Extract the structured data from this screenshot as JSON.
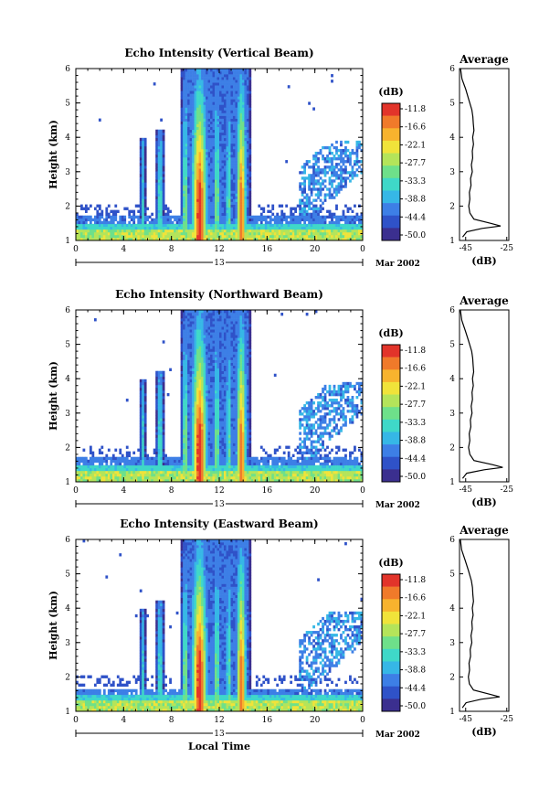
{
  "chart_data": [
    {
      "type": "heatmap",
      "title": "Echo Intensity (Vertical Beam)",
      "ylabel": "Height (km)",
      "xlabel": "",
      "x_ticks": [
        "0",
        "4",
        "8",
        "12",
        "16",
        "20",
        "0"
      ],
      "y_ticks": [
        "1",
        "2",
        "3",
        "4",
        "5",
        "6"
      ],
      "xlim": [
        0,
        24
      ],
      "ylim": [
        1,
        6
      ],
      "date_label": "13",
      "month_label": "Mar 2002",
      "colorbar": {
        "label": "(dB)",
        "ticks": [
          "-11.8",
          "-16.6",
          "-22.1",
          "-27.7",
          "-33.3",
          "-38.8",
          "-44.4",
          "-50.0"
        ]
      },
      "profile": {
        "title": "Average",
        "xlabel": "(dB)",
        "x_ticks": [
          "-45",
          "-25"
        ],
        "xlim": [
          -48,
          -24
        ],
        "y_ticks": [
          "1",
          "2",
          "3",
          "4",
          "5",
          "6"
        ],
        "x": [
          -46.5,
          -44.5,
          -37,
          -28,
          -33,
          -41,
          -43,
          -43.5,
          -43,
          -43.2,
          -42.4,
          -42.6,
          -41.8,
          -42.2,
          -41.6,
          -41.8,
          -41.2,
          -41.6,
          -41,
          -41.3,
          -41.5,
          -42,
          -43.5,
          -45,
          -46.8,
          -47.5
        ],
        "y": [
          1.1,
          1.25,
          1.35,
          1.42,
          1.5,
          1.62,
          1.8,
          2.0,
          2.2,
          2.4,
          2.6,
          2.8,
          3.0,
          3.2,
          3.4,
          3.6,
          3.8,
          4.0,
          4.2,
          4.4,
          4.6,
          4.8,
          5.1,
          5.4,
          5.7,
          6.0
        ]
      }
    },
    {
      "type": "heatmap",
      "title": "Echo Intensity (Northward Beam)",
      "ylabel": "Height (km)",
      "xlabel": "",
      "x_ticks": [
        "0",
        "4",
        "8",
        "12",
        "16",
        "20",
        "0"
      ],
      "y_ticks": [
        "1",
        "2",
        "3",
        "4",
        "5",
        "6"
      ],
      "xlim": [
        0,
        24
      ],
      "ylim": [
        1,
        6
      ],
      "date_label": "13",
      "month_label": "Mar 2002",
      "colorbar": {
        "label": "(dB)",
        "ticks": [
          "-11.8",
          "-16.6",
          "-22.1",
          "-27.7",
          "-33.3",
          "-38.8",
          "-44.4",
          "-50.0"
        ]
      },
      "profile": {
        "title": "Average",
        "xlabel": "(dB)",
        "x_ticks": [
          "-45",
          "-25"
        ],
        "xlim": [
          -48,
          -24
        ],
        "y_ticks": [
          "1",
          "2",
          "3",
          "4",
          "5",
          "6"
        ],
        "x": [
          -46.5,
          -44.5,
          -36,
          -27,
          -32,
          -41,
          -43,
          -43.6,
          -43,
          -43.3,
          -42.5,
          -42.7,
          -41.9,
          -42.3,
          -41.7,
          -41.9,
          -41.3,
          -41.7,
          -41.1,
          -41.4,
          -41.6,
          -42.1,
          -43.6,
          -45.2,
          -46.9,
          -47.6
        ],
        "y": [
          1.1,
          1.25,
          1.35,
          1.42,
          1.5,
          1.62,
          1.8,
          2.0,
          2.2,
          2.4,
          2.6,
          2.8,
          3.0,
          3.2,
          3.4,
          3.6,
          3.8,
          4.0,
          4.2,
          4.4,
          4.6,
          4.8,
          5.1,
          5.4,
          5.7,
          6.0
        ]
      }
    },
    {
      "type": "heatmap",
      "title": "Echo Intensity (Eastward Beam)",
      "ylabel": "Height (km)",
      "xlabel": "Local Time",
      "x_ticks": [
        "0",
        "4",
        "8",
        "12",
        "16",
        "20",
        "0"
      ],
      "y_ticks": [
        "1",
        "2",
        "3",
        "4",
        "5",
        "6"
      ],
      "xlim": [
        0,
        24
      ],
      "ylim": [
        1,
        6
      ],
      "date_label": "13",
      "month_label": "Mar 2002",
      "colorbar": {
        "label": "(dB)",
        "ticks": [
          "-11.8",
          "-16.6",
          "-22.1",
          "-27.7",
          "-33.3",
          "-38.8",
          "-44.4",
          "-50.0"
        ]
      },
      "profile": {
        "title": "Average",
        "xlabel": "(dB)",
        "x_ticks": [
          "-45",
          "-25"
        ],
        "xlim": [
          -48,
          -24
        ],
        "y_ticks": [
          "1",
          "2",
          "3",
          "4",
          "5",
          "6"
        ],
        "x": [
          -46.6,
          -44.8,
          -37.5,
          -28.5,
          -33.5,
          -41.2,
          -43.2,
          -43.7,
          -43.1,
          -43.4,
          -42.6,
          -42.8,
          -42,
          -42.4,
          -41.8,
          -42,
          -41.4,
          -41.8,
          -41.2,
          -41.5,
          -41.7,
          -42.2,
          -43.7,
          -45.3,
          -47,
          -47.6
        ],
        "y": [
          1.1,
          1.25,
          1.35,
          1.42,
          1.5,
          1.62,
          1.8,
          2.0,
          2.2,
          2.4,
          2.6,
          2.8,
          3.0,
          3.2,
          3.4,
          3.6,
          3.8,
          4.0,
          4.2,
          4.4,
          4.6,
          4.8,
          5.1,
          5.4,
          5.7,
          6.0
        ]
      }
    }
  ],
  "colors": {
    "scale": [
      "#3b2f8f",
      "#2f52c8",
      "#3d7fe6",
      "#36b7e6",
      "#3fd8c8",
      "#6ee08a",
      "#b4e45a",
      "#f0e33a",
      "#f7b32e",
      "#f07a2a",
      "#e2342a"
    ]
  }
}
